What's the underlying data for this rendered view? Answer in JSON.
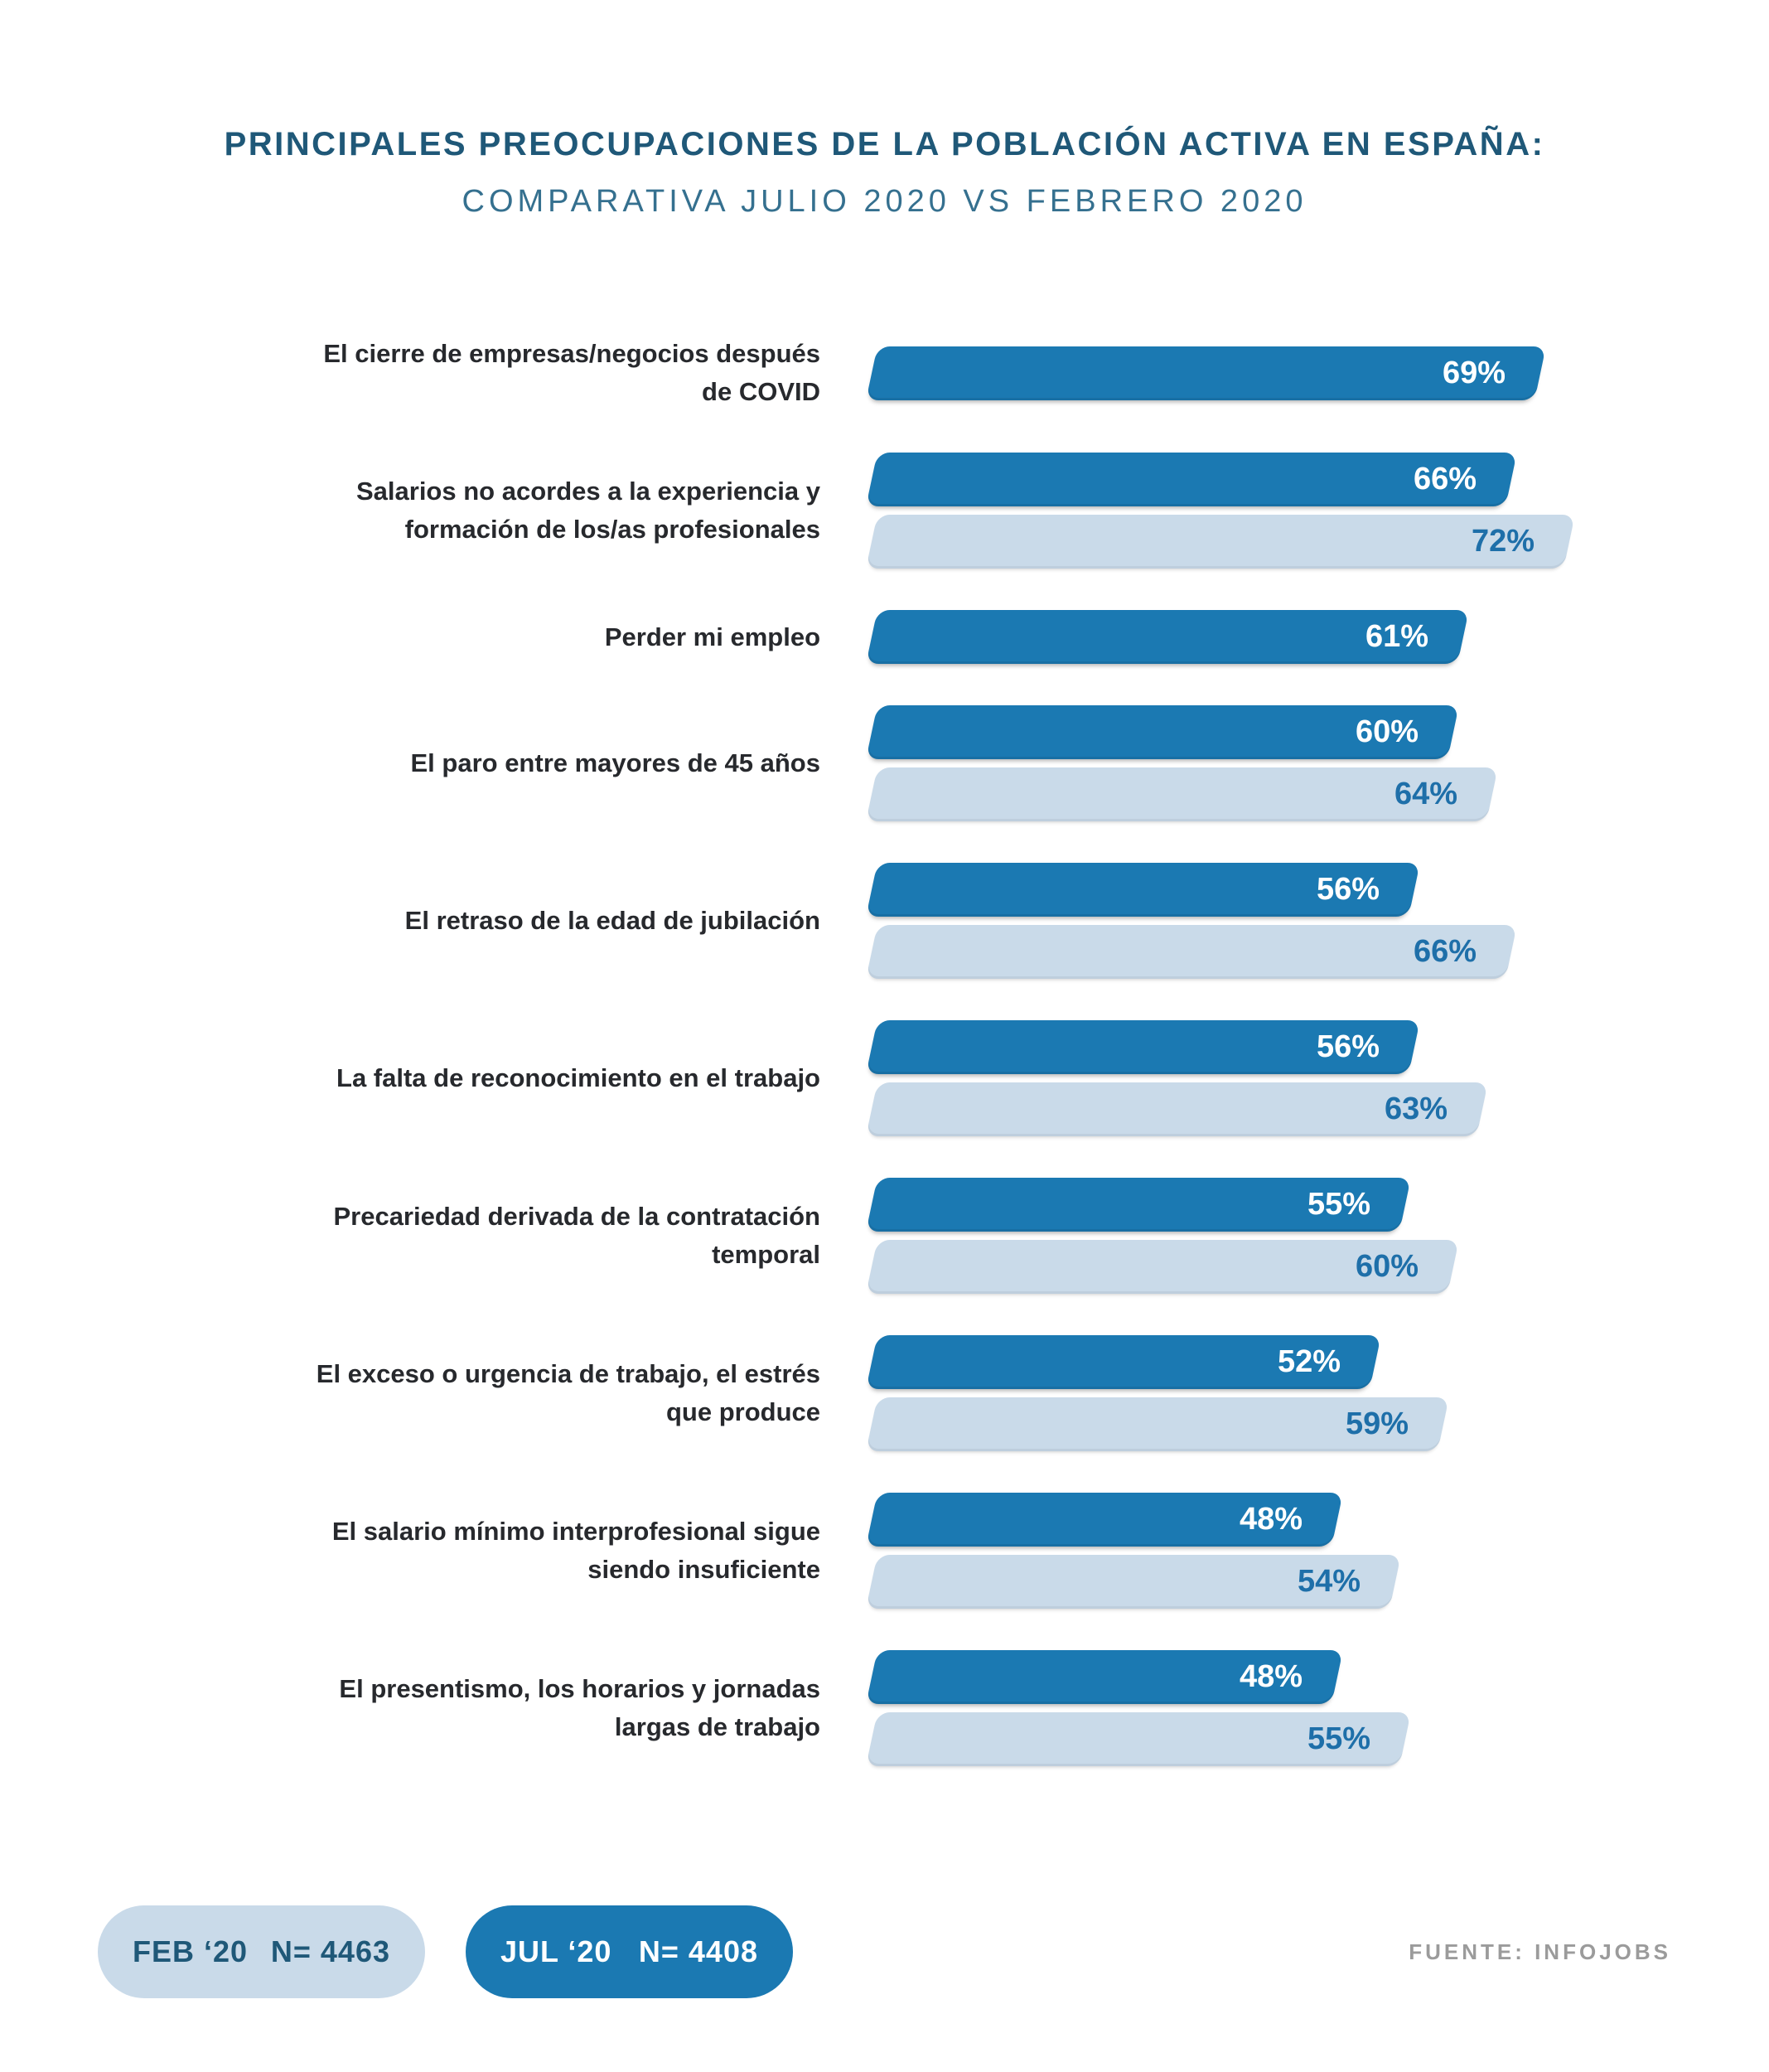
{
  "title": "PRINCIPALES PREOCUPACIONES DE LA POBLACIÓN ACTIVA EN ESPAÑA:",
  "subtitle": "COMPARATIVA JULIO 2020 VS FEBRERO 2020",
  "chart_data": {
    "type": "bar",
    "orientation": "horizontal",
    "value_suffix": "%",
    "xlim": [
      0,
      75
    ],
    "legend_position": "bottom-left",
    "grid": false,
    "series": [
      {
        "name": "JUL ‘20",
        "n": 4408,
        "color": "#1b79b2"
      },
      {
        "name": "FEB ‘20",
        "n": 4463,
        "color": "#c9dae9"
      }
    ],
    "items": [
      {
        "label_lines": [
          "El cierre de empresas/negocios después",
          "de COVID"
        ],
        "jul20": 69,
        "feb20": null
      },
      {
        "label_lines": [
          "Salarios no acordes a la experiencia y",
          "formación de los/as profesionales"
        ],
        "jul20": 66,
        "feb20": 72
      },
      {
        "label_lines": [
          "Perder mi empleo"
        ],
        "jul20": 61,
        "feb20": null
      },
      {
        "label_lines": [
          "El paro entre mayores de 45 años"
        ],
        "jul20": 60,
        "feb20": 64
      },
      {
        "label_lines": [
          "El retraso de la edad de jubilación"
        ],
        "jul20": 56,
        "feb20": 66
      },
      {
        "label_lines": [
          "La falta de reconocimiento en el trabajo"
        ],
        "jul20": 56,
        "feb20": 63
      },
      {
        "label_lines": [
          "Precariedad derivada de la contratación",
          "temporal"
        ],
        "jul20": 55,
        "feb20": 60
      },
      {
        "label_lines": [
          "El exceso o urgencia de trabajo, el estrés",
          "que produce"
        ],
        "jul20": 52,
        "feb20": 59
      },
      {
        "label_lines": [
          "El salario mínimo interprofesional sigue",
          "siendo insuficiente"
        ],
        "jul20": 48,
        "feb20": 54
      },
      {
        "label_lines": [
          "El presentismo, los horarios y jornadas",
          "largas de trabajo"
        ],
        "jul20": 48,
        "feb20": 55
      }
    ]
  },
  "legend": {
    "feb": {
      "label": "FEB ‘20",
      "n_label": "N= 4463"
    },
    "jul": {
      "label": "JUL ‘20",
      "n_label": "N= 4408"
    }
  },
  "source": "FUENTE: INFOJOBS",
  "colors": {
    "jul_bar": "#1b79b2",
    "feb_bar": "#c9dae9",
    "title_text": "#1f5878",
    "subtitle_text": "#35708f",
    "category_text": "#27292d",
    "feb_value_text": "#1e6fa9",
    "jul_value_text": "#ffffff",
    "source_text": "#9b9b9b"
  }
}
